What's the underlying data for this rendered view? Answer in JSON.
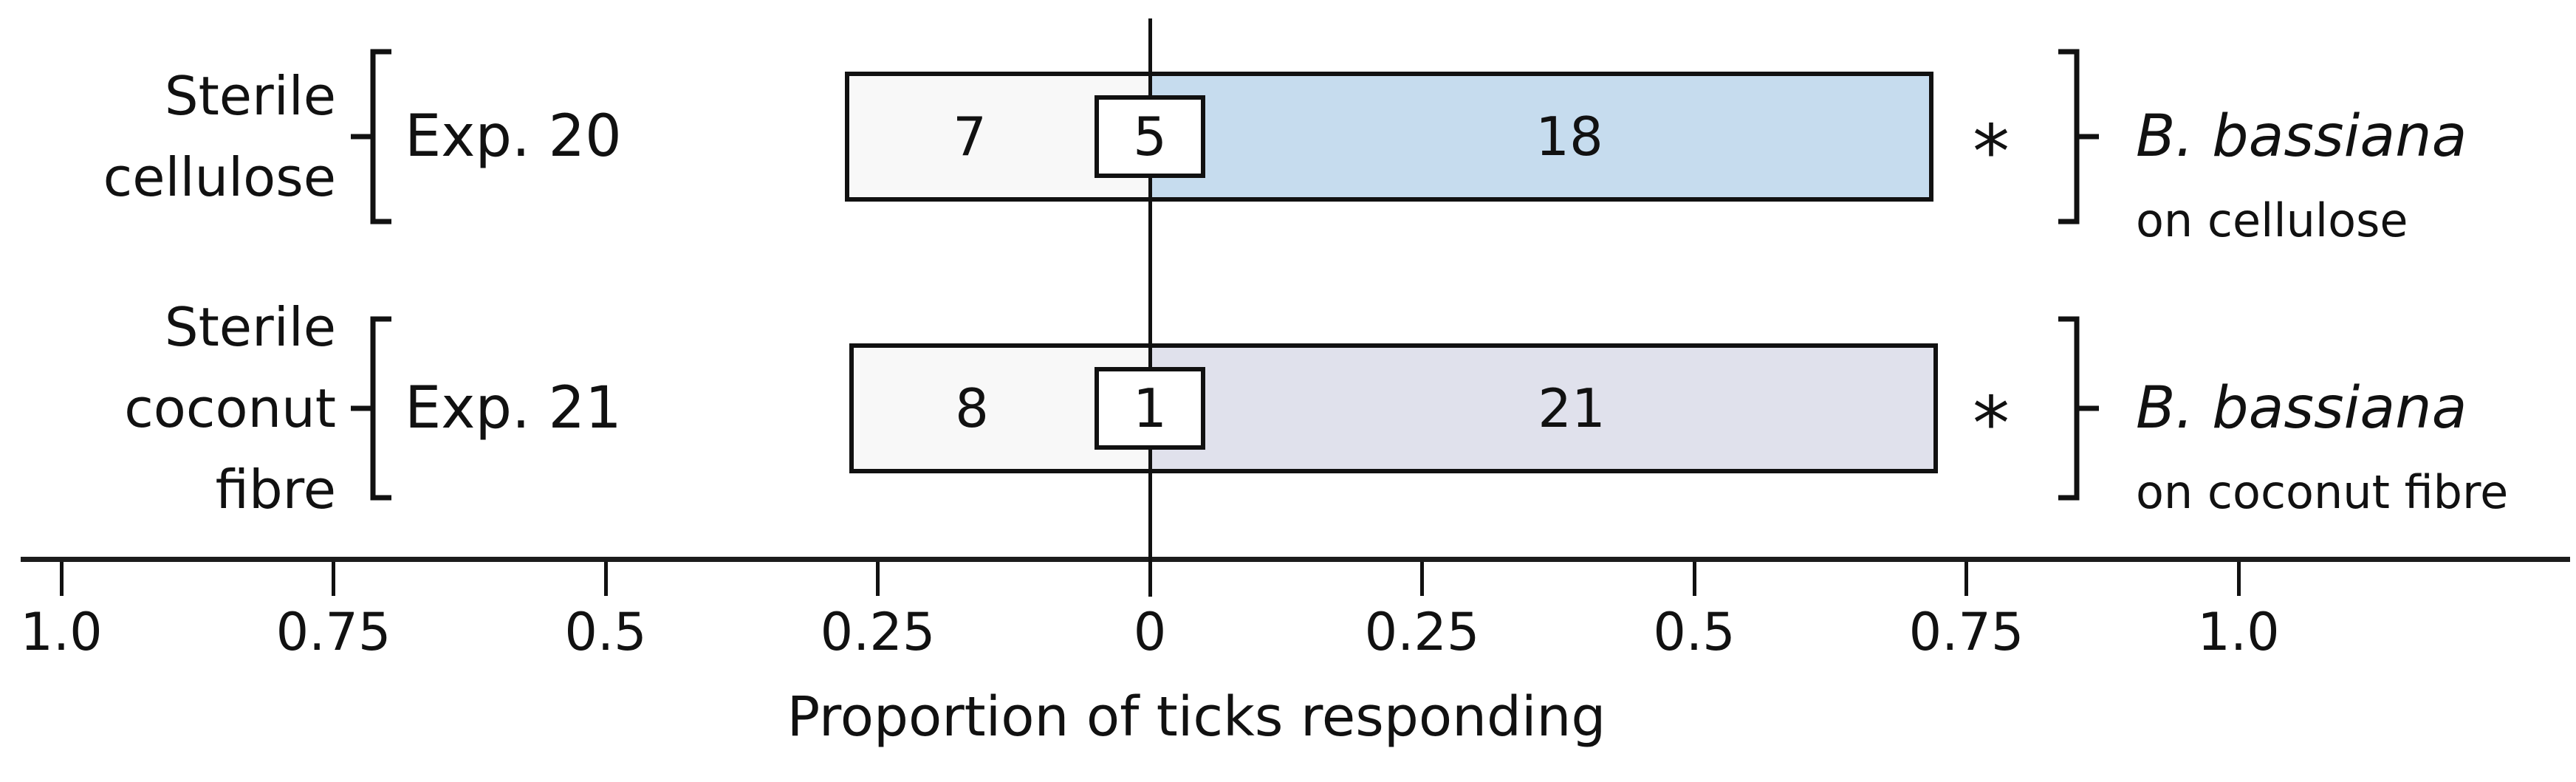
{
  "chart_data": {
    "type": "bar",
    "subtype": "diverging-horizontal-count-bar",
    "xlabel": "Proportion of ticks responding",
    "axis": {
      "tick_labels": [
        "1.0",
        "0.75",
        "0.5",
        "0.25",
        "0",
        "0.25",
        "0.5",
        "0.75",
        "1.0"
      ],
      "tick_positions": [
        -1.0,
        -0.75,
        -0.5,
        -0.25,
        0,
        0.25,
        0.5,
        0.75,
        1.0
      ],
      "xlim": [
        -1.18,
        1.3
      ],
      "grid": false
    },
    "rows": [
      {
        "category_lines": [
          "Sterile",
          "cellulose"
        ],
        "experiment": "Exp. 20",
        "counts": {
          "toward_control": 7,
          "no_response": 5,
          "toward_treatment": 18
        },
        "proportions": {
          "control_side": 0.28,
          "treatment_side": 0.72
        },
        "significance": "*",
        "treatment_label": "B. bassiana",
        "treatment_sublabel": "on cellulose",
        "colors": {
          "control_fill": "#f8f8f8",
          "treatment_fill": "#c6dcee"
        }
      },
      {
        "category_lines": [
          "Sterile",
          "coconut",
          "fibre"
        ],
        "experiment": "Exp. 21",
        "counts": {
          "toward_control": 8,
          "no_response": 1,
          "toward_treatment": 21
        },
        "proportions": {
          "control_side": 0.276,
          "treatment_side": 0.724
        },
        "significance": "*",
        "treatment_label": "B. bassiana",
        "treatment_sublabel": "on coconut fibre",
        "colors": {
          "control_fill": "#f8f8f8",
          "treatment_fill": "#e0e1ec"
        }
      }
    ],
    "colors": {
      "line": "#111111",
      "text": "#111111",
      "background": "#ffffff"
    }
  }
}
